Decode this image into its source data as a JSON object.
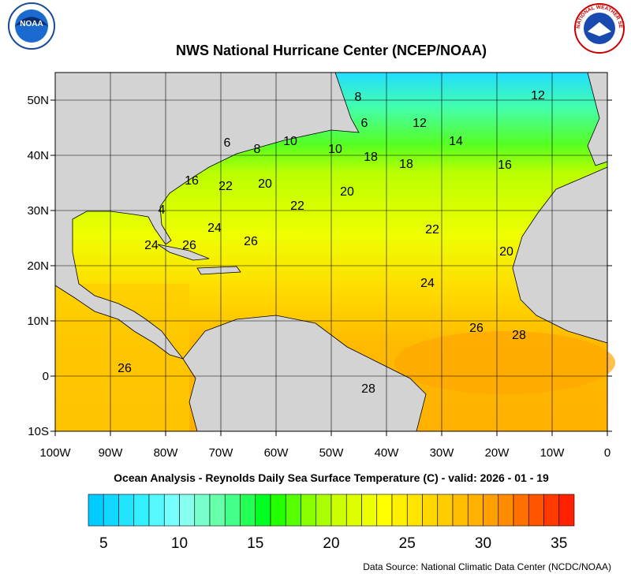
{
  "chart_data": {
    "type": "map",
    "title": "NWS National Hurricane Center (NCEP/NOAA)",
    "subtitle": "Ocean Analysis - Reynolds Daily Sea Surface Temperature (C) - valid: 2026 - 01 - 19",
    "source": "Data Source: National Climatic Data Center (NCDC/NOAA)",
    "logo_left": "NOAA",
    "logo_right": "NATIONAL WEATHER SERVICE",
    "xlim": [
      -100,
      0
    ],
    "ylim": [
      -10,
      55
    ],
    "xticks": [
      {
        "value": -100,
        "label": "100W"
      },
      {
        "value": -90,
        "label": "90W"
      },
      {
        "value": -80,
        "label": "80W"
      },
      {
        "value": -70,
        "label": "70W"
      },
      {
        "value": -60,
        "label": "60W"
      },
      {
        "value": -50,
        "label": "50W"
      },
      {
        "value": -40,
        "label": "40W"
      },
      {
        "value": -30,
        "label": "30W"
      },
      {
        "value": -20,
        "label": "20W"
      },
      {
        "value": -10,
        "label": "10W"
      },
      0
    ],
    "yticks": [
      {
        "value": -10,
        "label": "10S"
      },
      0,
      {
        "value": 10,
        "label": "10N"
      },
      {
        "value": 20,
        "label": "20N"
      },
      {
        "value": 30,
        "label": "30N"
      },
      {
        "value": 40,
        "label": "40N"
      },
      {
        "value": 50,
        "label": "50N"
      }
    ],
    "grid": true,
    "contour_labels": [
      8,
      12,
      6,
      12,
      14,
      6,
      8,
      10,
      10,
      18,
      18,
      16,
      16,
      22,
      20,
      20,
      22,
      4,
      24,
      26,
      24,
      26,
      22,
      20,
      24,
      26,
      28,
      26,
      28
    ],
    "colorbar": {
      "lim": [
        4,
        36
      ],
      "ticks": [
        5,
        10,
        15,
        20,
        25,
        30,
        35
      ],
      "colors": [
        "#00ccff",
        "#11d8ff",
        "#22e4ff",
        "#33f0ff",
        "#55f8ff",
        "#77ffff",
        "#88ffee",
        "#77ffcc",
        "#66ffaa",
        "#44ff88",
        "#22ff55",
        "#00ff22",
        "#22ff00",
        "#55ff00",
        "#88ff00",
        "#aaff00",
        "#ccff00",
        "#ddff00",
        "#eeff00",
        "#ffff00",
        "#fff000",
        "#ffe400",
        "#ffd800",
        "#ffcc00",
        "#ffbf00",
        "#ffb000",
        "#ffa000",
        "#ff8c00",
        "#ff7000",
        "#ff5500",
        "#ff3a00",
        "#ff2200"
      ]
    }
  }
}
